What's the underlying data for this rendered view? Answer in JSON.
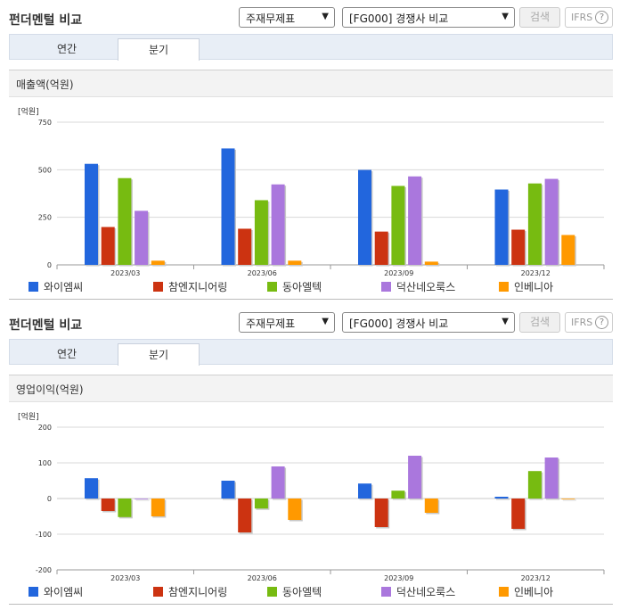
{
  "header": {
    "title": "펀더멘털 비교"
  },
  "controls": {
    "theme_select": "주재무제표",
    "competitor_select": "[FG000] 경쟁사 비교",
    "search_button": "검색",
    "ifrs_label": "IFRS",
    "help_glyph": "?"
  },
  "tabs": [
    {
      "label": "연간"
    },
    {
      "label": "분기"
    }
  ],
  "active_tab": "분기",
  "colors": {
    "series": [
      "#2266dd",
      "#cc3311",
      "#77bb11",
      "#aa77dd",
      "#ff9900"
    ],
    "grid": "#d8d8d8",
    "axis_text": "#333333"
  },
  "chart_data": [
    {
      "type": "bar",
      "title": "매출액(억원)",
      "unit": "[억원]",
      "categories": [
        "2023/03",
        "2023/06",
        "2023/09",
        "2023/12"
      ],
      "yticks": [
        "750",
        "500",
        "250",
        "0"
      ],
      "ylim": [
        0,
        750
      ],
      "grid": true,
      "legend": "bottom",
      "series": [
        {
          "name": "와이엠씨",
          "values": [
            531,
            612,
            499,
            396
          ]
        },
        {
          "name": "참엔지니어링",
          "values": [
            199,
            190,
            175,
            185
          ]
        },
        {
          "name": "동아엘텍",
          "values": [
            456,
            340,
            415,
            428
          ]
        },
        {
          "name": "덕산네오룩스",
          "values": [
            284,
            423,
            465,
            452
          ]
        },
        {
          "name": "인베니아",
          "values": [
            22,
            22,
            17,
            157
          ]
        }
      ]
    },
    {
      "type": "bar",
      "title": "영업이익(억원)",
      "unit": "[억원]",
      "categories": [
        "2023/03",
        "2023/06",
        "2023/09",
        "2023/12"
      ],
      "yticks": [
        "200",
        "100",
        "0",
        "-100",
        "-200"
      ],
      "ylim": [
        -200,
        200
      ],
      "grid": true,
      "legend": "bottom",
      "series": [
        {
          "name": "와이엠씨",
          "values": [
            57,
            50,
            42,
            5
          ]
        },
        {
          "name": "참엔지니어링",
          "values": [
            -35,
            -95,
            -80,
            -85
          ]
        },
        {
          "name": "동아엘텍",
          "values": [
            -52,
            -28,
            22,
            77
          ]
        },
        {
          "name": "덕산네오룩스",
          "values": [
            0,
            90,
            120,
            115
          ]
        },
        {
          "name": "인베니아",
          "values": [
            -50,
            -60,
            -40,
            0
          ]
        }
      ]
    }
  ]
}
